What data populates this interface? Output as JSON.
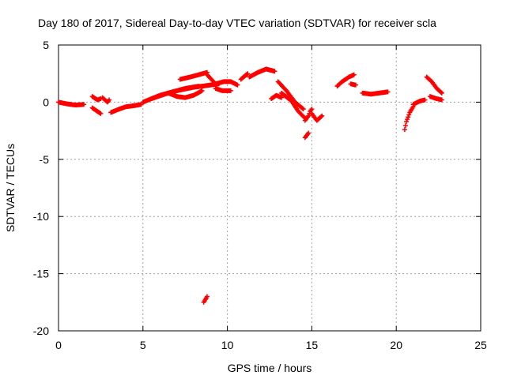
{
  "chart_data": {
    "type": "scatter",
    "title": "Day 180 of 2017, Sidereal Day-to-day VTEC variation (SDTVAR) for receiver scla",
    "xlabel": "GPS time / hours",
    "ylabel": "SDTVAR / TECUs",
    "xlim": [
      0,
      25
    ],
    "ylim": [
      -20,
      5
    ],
    "xticks": [
      0,
      5,
      10,
      15,
      20,
      25
    ],
    "yticks": [
      5,
      0,
      -5,
      -10,
      -15,
      -20
    ],
    "grid": true,
    "marker": "+",
    "color": "#ff0000",
    "segments": [
      {
        "x": [
          0.0,
          0.5,
          1.0,
          1.5
        ],
        "y": [
          0.0,
          -0.15,
          -0.25,
          -0.2
        ]
      },
      {
        "x": [
          2.0,
          2.3,
          2.5
        ],
        "y": [
          0.5,
          0.2,
          0.3
        ]
      },
      {
        "x": [
          2.0,
          2.3,
          2.5
        ],
        "y": [
          -0.5,
          -0.8,
          -1.0
        ]
      },
      {
        "x": [
          2.6,
          2.9,
          3.0
        ],
        "y": [
          0.4,
          0.0,
          0.2
        ]
      },
      {
        "x": [
          3.1,
          3.6,
          4.0,
          4.5,
          4.9
        ],
        "y": [
          -0.9,
          -0.6,
          -0.4,
          -0.3,
          -0.2
        ]
      },
      {
        "x": [
          5.0,
          6.0,
          7.0,
          8.0,
          9.0,
          9.5
        ],
        "y": [
          0.0,
          0.6,
          1.0,
          1.3,
          1.5,
          1.6
        ]
      },
      {
        "x": [
          5.5,
          6.5,
          7.5,
          8.3
        ],
        "y": [
          0.3,
          0.8,
          1.2,
          1.4
        ]
      },
      {
        "x": [
          6.5,
          7.0,
          7.5,
          8.0,
          8.5
        ],
        "y": [
          0.8,
          0.5,
          0.4,
          0.6,
          1.0
        ]
      },
      {
        "x": [
          7.2,
          7.8,
          8.3,
          8.8
        ],
        "y": [
          2.0,
          2.2,
          2.4,
          2.6
        ]
      },
      {
        "x": [
          8.8,
          9.3,
          9.8,
          10.2,
          10.6
        ],
        "y": [
          2.4,
          1.6,
          1.8,
          1.8,
          1.5
        ]
      },
      {
        "x": [
          9.3,
          9.7,
          10.2
        ],
        "y": [
          1.2,
          1.0,
          1.0
        ]
      },
      {
        "x": [
          10.8,
          11.2
        ],
        "y": [
          2.0,
          2.5
        ]
      },
      {
        "x": [
          11.3,
          11.8,
          12.3,
          12.8
        ],
        "y": [
          2.2,
          2.6,
          2.9,
          2.7
        ]
      },
      {
        "x": [
          12.6,
          12.9,
          13.2
        ],
        "y": [
          0.3,
          0.6,
          0.4
        ]
      },
      {
        "x": [
          13.0,
          13.5,
          14.0,
          14.5
        ],
        "y": [
          1.8,
          1.0,
          0.0,
          -0.6
        ]
      },
      {
        "x": [
          13.2,
          13.8,
          14.2,
          14.6
        ],
        "y": [
          0.8,
          0.1,
          -0.8,
          -1.4
        ]
      },
      {
        "x": [
          14.6,
          14.8,
          14.9,
          15.0
        ],
        "y": [
          -1.6,
          -1.2,
          -0.8,
          -0.6
        ]
      },
      {
        "x": [
          14.6,
          14.8
        ],
        "y": [
          -3.1,
          -2.7
        ]
      },
      {
        "x": [
          15.0,
          15.3,
          15.6
        ],
        "y": [
          -1.0,
          -1.6,
          -1.2
        ]
      },
      {
        "x": [
          16.5,
          16.8,
          17.2,
          17.5
        ],
        "y": [
          1.4,
          1.8,
          2.2,
          2.4
        ]
      },
      {
        "x": [
          17.3,
          17.6
        ],
        "y": [
          1.6,
          1.5
        ]
      },
      {
        "x": [
          18.0,
          18.5,
          19.0,
          19.5
        ],
        "y": [
          0.8,
          0.7,
          0.8,
          0.9
        ]
      },
      {
        "x": [
          20.5,
          20.6,
          20.8,
          21.0
        ],
        "y": [
          -2.4,
          -1.7,
          -0.9,
          -0.4
        ]
      },
      {
        "x": [
          21.0,
          21.4,
          21.7
        ],
        "y": [
          -0.2,
          0.1,
          0.2
        ]
      },
      {
        "x": [
          21.8,
          22.1,
          22.4,
          22.7
        ],
        "y": [
          2.2,
          1.8,
          1.2,
          0.8
        ]
      },
      {
        "x": [
          22.0,
          22.4,
          22.7
        ],
        "y": [
          0.5,
          0.3,
          0.2
        ]
      },
      {
        "x": [
          8.6,
          8.8
        ],
        "y": [
          -17.5,
          -17.0
        ]
      }
    ]
  }
}
